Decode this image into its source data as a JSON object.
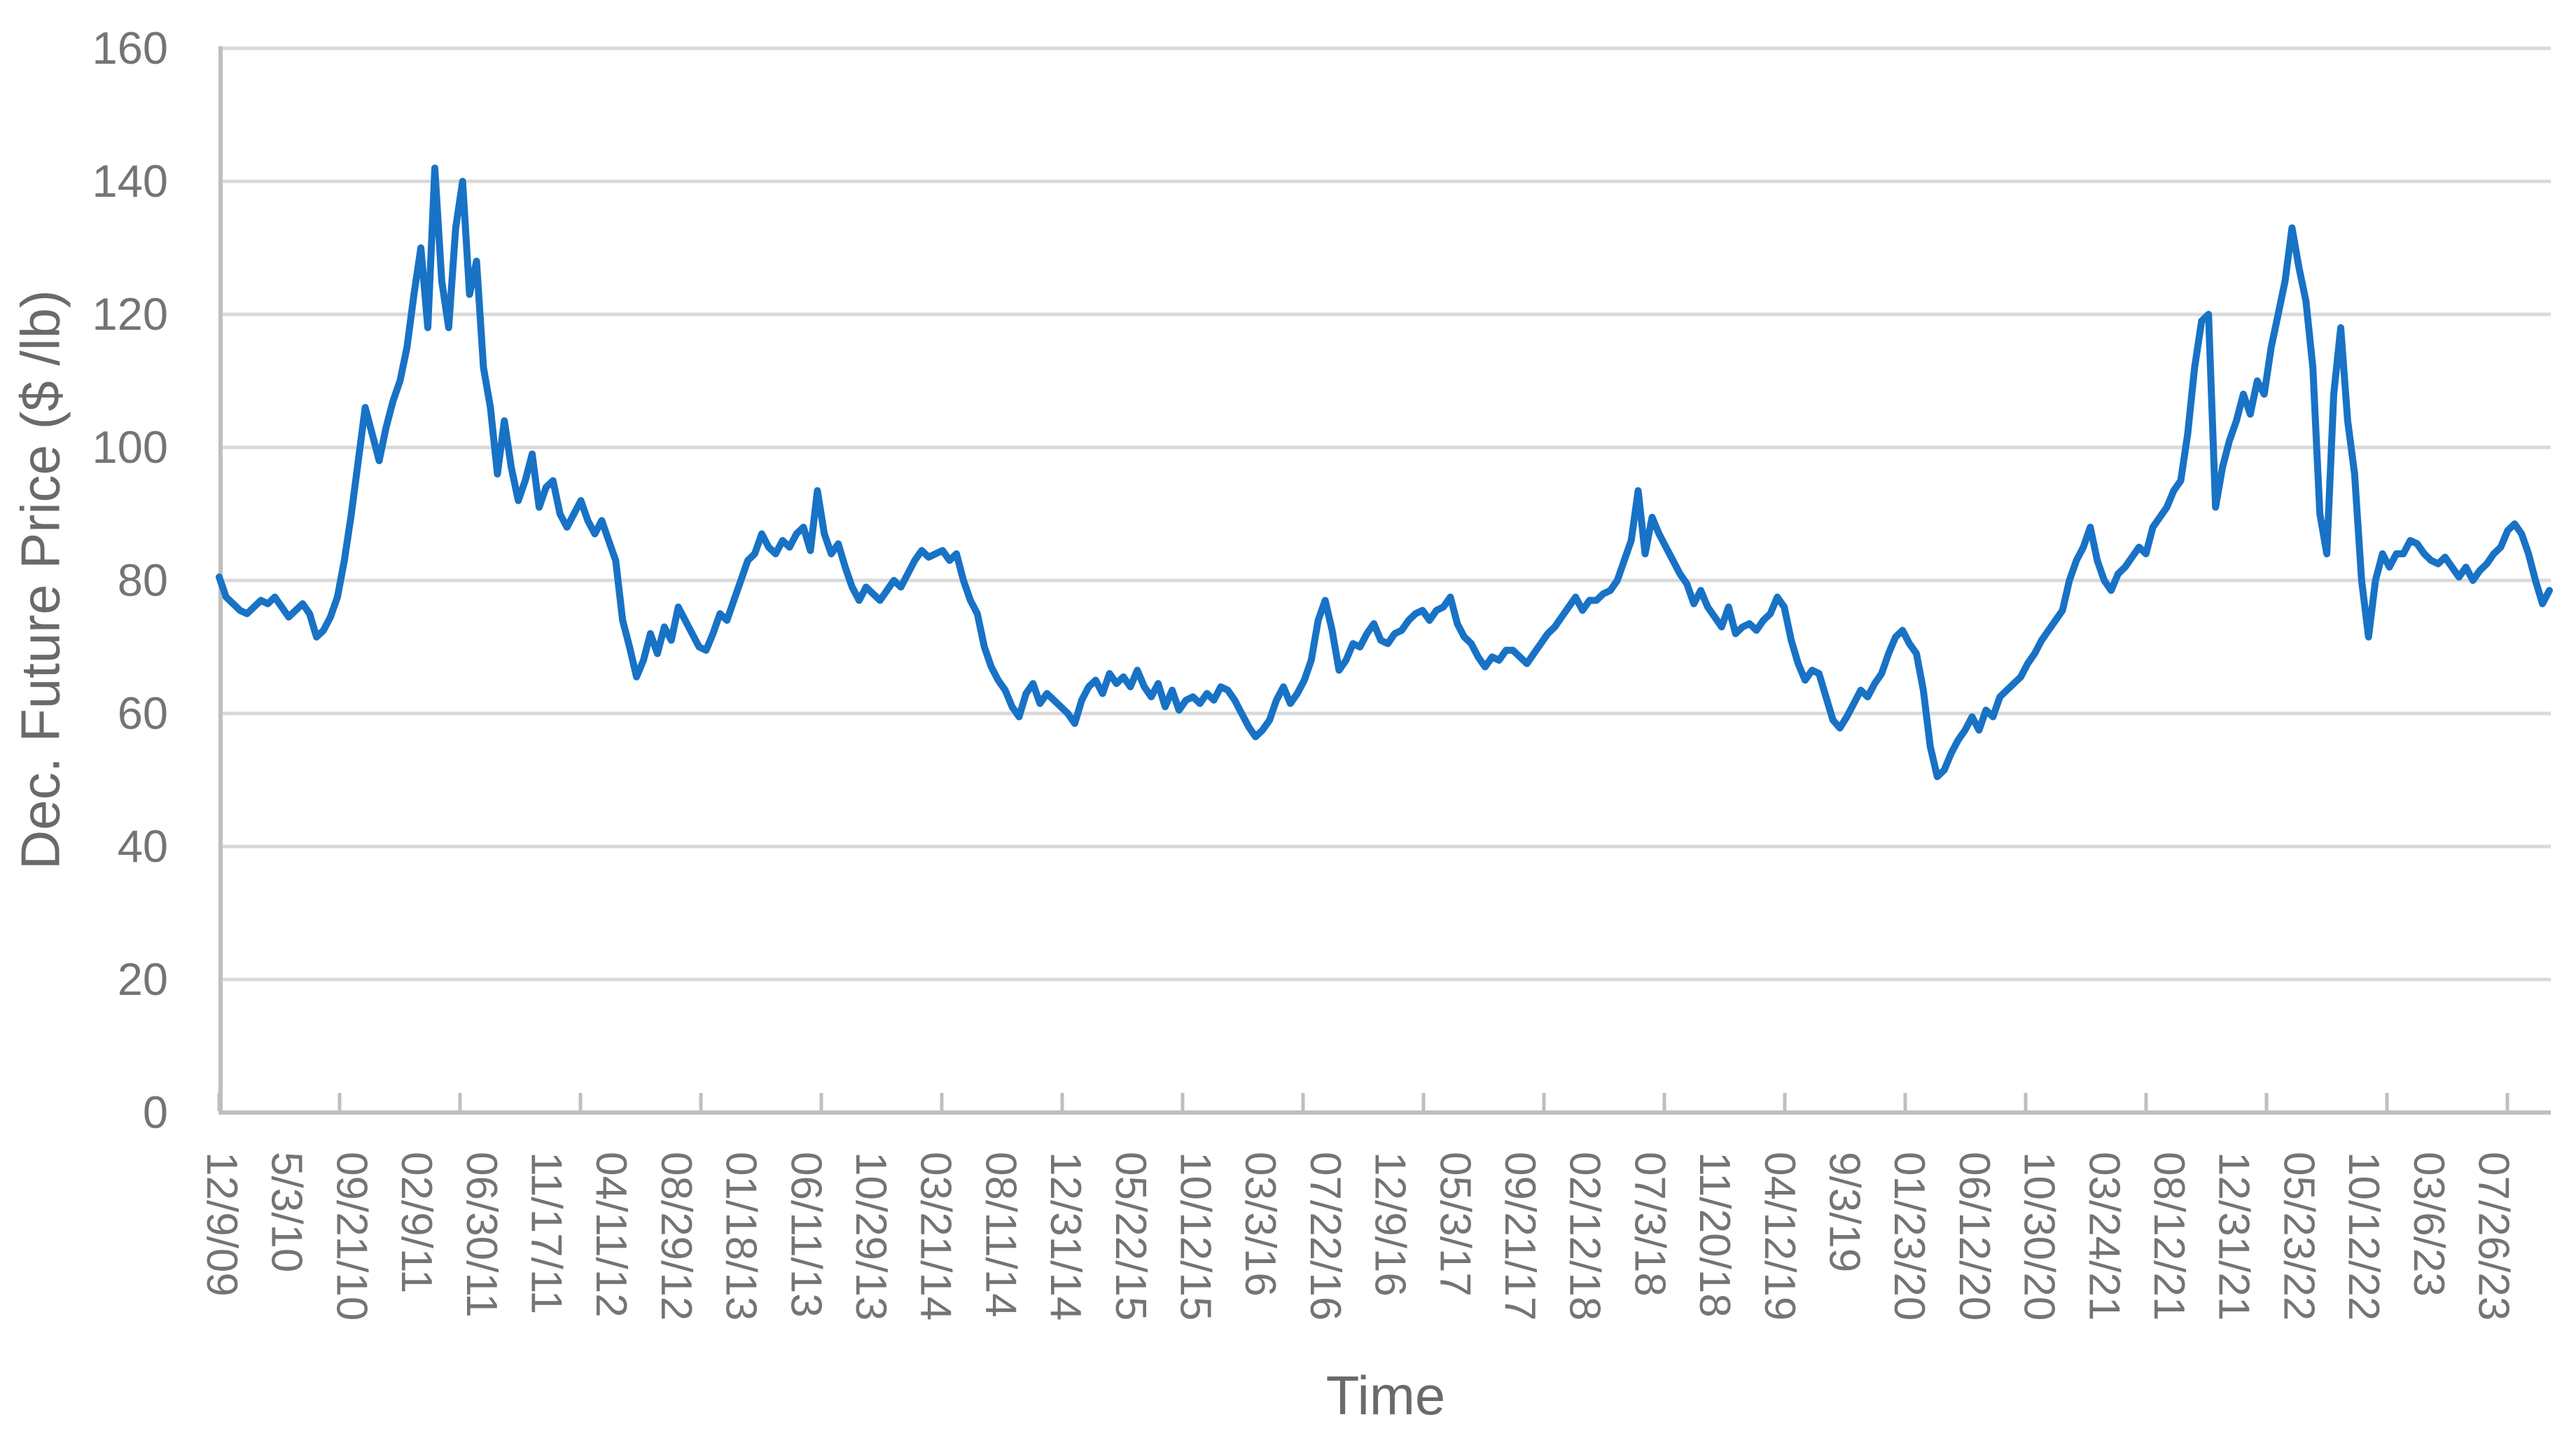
{
  "chart_data": {
    "type": "line",
    "title": "",
    "xlabel": "Time",
    "ylabel": "Dec. Future Price ($ /lb)",
    "ylim": [
      0,
      160
    ],
    "ytick_interval": 20,
    "yticks": [
      0,
      20,
      40,
      60,
      80,
      100,
      120,
      140,
      160
    ],
    "grid": true,
    "legend": "none",
    "x_tick_labels": [
      "12/9/09",
      "5/3/10",
      "09/21/10",
      "02/9/11",
      "06/30/11",
      "11/17/11",
      "04/11/12",
      "08/29/12",
      "01/18/13",
      "06/11/13",
      "10/29/13",
      "03/21/14",
      "08/11/14",
      "12/31/14",
      "05/22/15",
      "10/12/15",
      "03/3/16",
      "07/22/16",
      "12/9/16",
      "05/3/17",
      "09/21/17",
      "02/12/18",
      "07/3/18",
      "11/20/18",
      "04/12/19",
      "9/3/19",
      "01/23/20",
      "06/12/20",
      "10/30/20",
      "03/24/21",
      "08/12/21",
      "12/31/21",
      "05/23/22",
      "10/12/22",
      "03/6/23",
      "07/26/23"
    ],
    "values": [
      80.5,
      77.5,
      76.5,
      75.5,
      75,
      76,
      77,
      76.5,
      77.5,
      76,
      74.5,
      75.5,
      76.5,
      75,
      71.5,
      72.5,
      74.5,
      77.5,
      83,
      90,
      98,
      106,
      102,
      98,
      103,
      107,
      110,
      115,
      123,
      130,
      118,
      142,
      125,
      118,
      133,
      140,
      123,
      128,
      112,
      106,
      96,
      104,
      97,
      92,
      95,
      99,
      91,
      94,
      95,
      90,
      88,
      90,
      92,
      89,
      87,
      89,
      86,
      83,
      74,
      70,
      65.5,
      68,
      72,
      69,
      73,
      71,
      76,
      74,
      72,
      70,
      69.5,
      72,
      75,
      74,
      77,
      80,
      83,
      84,
      87,
      85,
      84,
      86,
      85,
      87,
      88,
      84.5,
      93.5,
      87,
      84,
      85.5,
      82,
      79,
      77,
      79,
      78,
      77,
      78.5,
      80,
      79,
      81,
      83,
      84.5,
      83.5,
      84,
      84.5,
      83,
      84,
      80,
      77,
      75,
      70,
      67,
      65,
      63.5,
      61,
      59.5,
      63,
      64.5,
      61.5,
      63,
      62,
      61,
      60,
      58.5,
      62,
      64,
      65,
      63,
      66,
      64.5,
      65.5,
      64,
      66.5,
      64,
      62.5,
      64.5,
      61,
      63.5,
      60.5,
      62,
      62.5,
      61.5,
      63,
      62,
      64,
      63.5,
      62,
      60,
      58,
      56.5,
      57.5,
      59,
      62,
      64,
      61.5,
      63,
      65,
      68,
      74,
      77,
      72.5,
      66.5,
      68,
      70.5,
      70,
      72,
      73.5,
      71,
      70.5,
      72,
      72.5,
      74,
      75,
      75.5,
      74,
      75.5,
      76,
      77.5,
      73.5,
      71.5,
      70.5,
      68.5,
      67,
      68.5,
      68,
      69.5,
      69.5,
      68.5,
      67.5,
      69,
      70.5,
      72,
      73,
      74.5,
      76,
      77.5,
      75.5,
      77,
      77,
      78,
      78.5,
      80,
      83,
      86,
      93.5,
      84,
      89.5,
      87,
      85,
      83,
      81,
      79.5,
      76.5,
      78.5,
      76,
      74.5,
      73,
      76,
      72,
      73,
      73.5,
      72.5,
      74,
      75,
      77.5,
      76,
      71,
      67.5,
      65,
      66.5,
      66,
      62.5,
      59,
      57.8,
      59.5,
      61.5,
      63.5,
      62.5,
      64.5,
      66,
      69,
      71.5,
      72.5,
      70.5,
      69,
      63.5,
      55,
      50.5,
      51.5,
      54,
      56,
      57.5,
      59.5,
      57.5,
      60.5,
      59.5,
      62.5,
      63.5,
      64.5,
      65.5,
      67.5,
      69,
      71,
      72.5,
      74,
      75.5,
      80,
      83,
      85,
      88,
      83,
      80,
      78.5,
      81,
      82,
      83.5,
      85,
      84,
      88,
      89.5,
      91,
      93.5,
      95,
      102,
      112,
      119,
      120,
      91,
      97,
      101,
      104,
      108,
      105,
      110,
      108,
      115,
      120,
      125,
      133,
      127,
      122,
      112,
      90,
      84,
      108,
      118,
      104,
      96,
      80,
      71.5,
      80,
      84,
      82,
      84,
      84,
      86,
      85.5,
      84,
      83,
      82.5,
      83.5,
      82,
      80.5,
      82,
      80,
      81.5,
      82.5,
      84,
      85,
      87.5,
      88.5,
      87,
      84,
      80,
      76.5,
      78.5
    ]
  },
  "colors": {
    "line": "#1872C5",
    "gridline": "#D9D9D9",
    "axis": "#BFBFBF",
    "tick_label": "#747474",
    "axis_title": "#6A6A6A",
    "background": "#FFFFFF"
  }
}
